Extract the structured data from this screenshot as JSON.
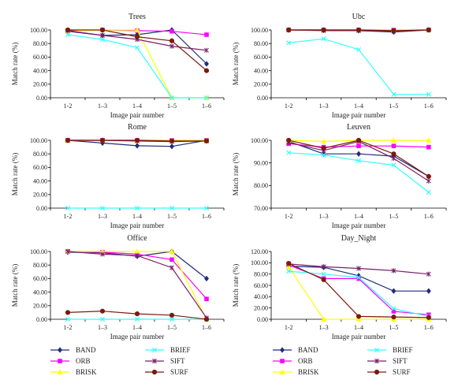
{
  "series_defs": [
    {
      "key": "band",
      "name": "BAND",
      "color": "#1f2d7a",
      "marker": "diamond"
    },
    {
      "key": "orb",
      "name": "ORB",
      "color": "#ff00ff",
      "marker": "square"
    },
    {
      "key": "brisk",
      "name": "BRISK",
      "color": "#ffff00",
      "marker": "triangle"
    },
    {
      "key": "brief",
      "name": "BRIEF",
      "color": "#33ffff",
      "marker": "x"
    },
    {
      "key": "sift",
      "name": "SIFT",
      "color": "#7a1f6a",
      "marker": "star"
    },
    {
      "key": "surf",
      "name": "SURF",
      "color": "#7a1a10",
      "marker": "circle"
    }
  ],
  "legend_order": [
    "band",
    "brief",
    "orb",
    "sift",
    "brisk",
    "surf"
  ],
  "chart_data": [
    {
      "type": "line",
      "title": "Trees",
      "xlabel": "Image pair number",
      "ylabel": "Match rate (%)",
      "categories": [
        "1-2",
        "1–3",
        "1–4",
        "1–5",
        "1–6"
      ],
      "yticks": [
        "0.00",
        "20.00",
        "40.00",
        "60.00",
        "80.00",
        "100.00"
      ],
      "ylim": [
        0,
        100
      ],
      "series": [
        {
          "name": "BAND",
          "values": [
            98,
            92,
            93,
            100,
            50
          ]
        },
        {
          "name": "ORB",
          "values": [
            99,
            100,
            99,
            98,
            93
          ]
        },
        {
          "name": "BRISK",
          "values": [
            98,
            100,
            100,
            0,
            0
          ]
        },
        {
          "name": "BRIEF",
          "values": [
            93,
            86,
            74,
            0,
            0
          ]
        },
        {
          "name": "SIFT",
          "values": [
            99,
            92,
            86,
            76,
            70
          ]
        },
        {
          "name": "SURF",
          "values": [
            100,
            100,
            90,
            84,
            40
          ]
        }
      ]
    },
    {
      "type": "line",
      "title": "Ubc",
      "xlabel": "Image pair number",
      "ylabel": "Match rate (%)",
      "categories": [
        "1-2",
        "1–3",
        "1–4",
        "1–5",
        "1–6"
      ],
      "yticks": [
        "0.00",
        "20.00",
        "40.00",
        "60.00",
        "80.00",
        "100.00"
      ],
      "ylim": [
        0,
        100
      ],
      "series": [
        {
          "name": "BAND",
          "values": [
            100,
            100,
            99,
            97,
            100
          ]
        },
        {
          "name": "ORB",
          "values": [
            100,
            100,
            100,
            100,
            100
          ]
        },
        {
          "name": "BRISK",
          "values": [
            100,
            100,
            100,
            100,
            100
          ]
        },
        {
          "name": "BRIEF",
          "values": [
            81,
            87,
            71,
            5,
            5
          ]
        },
        {
          "name": "SIFT",
          "values": [
            100,
            99,
            99,
            98,
            100
          ]
        },
        {
          "name": "SURF",
          "values": [
            100,
            100,
            100,
            99,
            100
          ]
        }
      ]
    },
    {
      "type": "line",
      "title": "Rome",
      "xlabel": "Image pair number",
      "ylabel": "Match rate (%)",
      "categories": [
        "1-2",
        "1–3",
        "1–4",
        "1–5",
        "1–6"
      ],
      "yticks": [
        "0.00",
        "20.00",
        "40.00",
        "60.00",
        "80.00",
        "100.00"
      ],
      "ylim": [
        0,
        100
      ],
      "series": [
        {
          "name": "BAND",
          "values": [
            100,
            96,
            92,
            91,
            100
          ]
        },
        {
          "name": "ORB",
          "values": [
            100,
            100,
            100,
            100,
            100
          ]
        },
        {
          "name": "BRISK",
          "values": [
            100,
            100,
            100,
            100,
            100
          ]
        },
        {
          "name": "BRIEF",
          "values": [
            0,
            0,
            0,
            0,
            0
          ]
        },
        {
          "name": "SIFT",
          "values": [
            100,
            100,
            99,
            98,
            99
          ]
        },
        {
          "name": "SURF",
          "values": [
            100,
            100,
            100,
            99,
            99
          ]
        }
      ]
    },
    {
      "type": "line",
      "title": "Leuven",
      "xlabel": "Image pair number",
      "ylabel": "Match rate (%)",
      "categories": [
        "1-2",
        "1–3",
        "1–4",
        "1–5",
        "1–6"
      ],
      "yticks": [
        "70.00",
        "80.00",
        "90.00",
        "100.00"
      ],
      "ylim": [
        70,
        100
      ],
      "series": [
        {
          "name": "BAND",
          "values": [
            99.5,
            94,
            94,
            93,
            84
          ]
        },
        {
          "name": "ORB",
          "values": [
            98.5,
            97,
            97.5,
            97.5,
            97
          ]
        },
        {
          "name": "BRISK",
          "values": [
            100,
            99.5,
            100,
            100,
            100
          ]
        },
        {
          "name": "BRIEF",
          "values": [
            94.5,
            93.5,
            91,
            89,
            77
          ]
        },
        {
          "name": "SIFT",
          "values": [
            99,
            95.5,
            99.5,
            92,
            82
          ]
        },
        {
          "name": "SURF",
          "values": [
            100,
            96.5,
            100,
            94,
            84
          ]
        }
      ]
    },
    {
      "type": "line",
      "title": "Office",
      "xlabel": "Image pair number",
      "ylabel": "Match rate (%)",
      "categories": [
        "1-2",
        "1–3",
        "1–4",
        "1–5",
        "1–6"
      ],
      "yticks": [
        "0.00",
        "20.00",
        "40.00",
        "60.00",
        "80.00",
        "100.00"
      ],
      "ylim": [
        0,
        100
      ],
      "series": [
        {
          "name": "BAND",
          "values": [
            99,
            98,
            93,
            100,
            60
          ]
        },
        {
          "name": "ORB",
          "values": [
            100,
            99,
            96,
            88,
            30
          ]
        },
        {
          "name": "BRISK",
          "values": [
            100,
            100,
            100,
            100,
            0
          ]
        },
        {
          "name": "BRIEF",
          "values": [
            0,
            0,
            0,
            0,
            0
          ]
        },
        {
          "name": "SIFT",
          "values": [
            100,
            96,
            94,
            76,
            2
          ]
        },
        {
          "name": "SURF",
          "values": [
            10,
            12,
            8,
            6,
            0
          ]
        }
      ]
    },
    {
      "type": "line",
      "title": "Day_Night",
      "xlabel": "Image pair number",
      "ylabel": "Match rate (%)",
      "categories": [
        "1-2",
        "1–3",
        "1–4",
        "1–5",
        "1–6"
      ],
      "yticks": [
        "0.00",
        "20.00",
        "40.00",
        "60.00",
        "80.00",
        "100.00",
        "120.00"
      ],
      "ylim": [
        0,
        120
      ],
      "series": [
        {
          "name": "BAND",
          "values": [
            94,
            92,
            77,
            50,
            50
          ]
        },
        {
          "name": "ORB",
          "values": [
            96,
            72,
            72,
            14,
            8
          ]
        },
        {
          "name": "BRISK",
          "values": [
            93,
            0,
            0,
            0,
            0
          ]
        },
        {
          "name": "BRIEF",
          "values": [
            85,
            80,
            74,
            19,
            5
          ]
        },
        {
          "name": "SIFT",
          "values": [
            98,
            93,
            90,
            86,
            80
          ]
        },
        {
          "name": "SURF",
          "values": [
            99,
            70,
            5,
            4,
            3
          ]
        }
      ]
    }
  ]
}
